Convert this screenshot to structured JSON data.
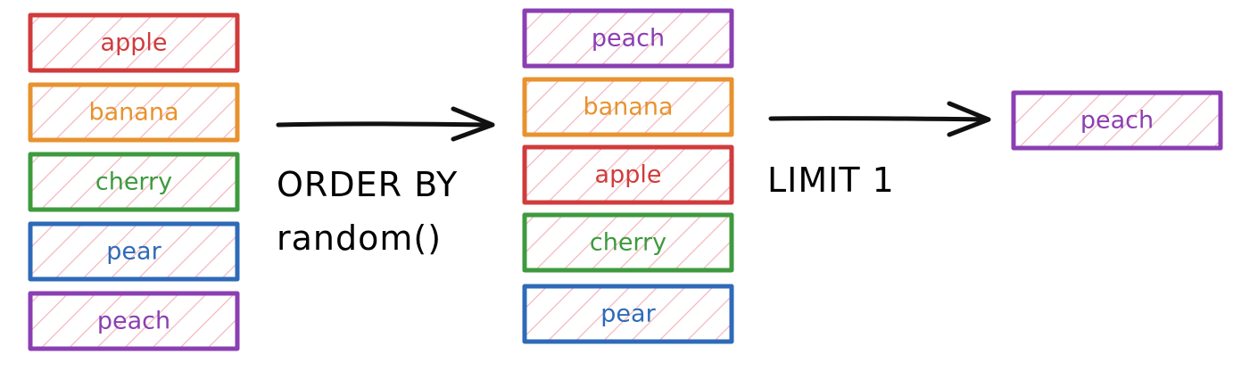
{
  "colors": {
    "apple": "#d13b3b",
    "banana": "#e8922e",
    "cherry": "#3e9a3e",
    "pear": "#2e6ab8",
    "peach": "#8b3fb3",
    "hatch": "#f4b8bd",
    "arrow": "#111111"
  },
  "columns": {
    "input": [
      {
        "label": "apple",
        "color_key": "apple"
      },
      {
        "label": "banana",
        "color_key": "banana"
      },
      {
        "label": "cherry",
        "color_key": "cherry"
      },
      {
        "label": "pear",
        "color_key": "pear"
      },
      {
        "label": "peach",
        "color_key": "peach"
      }
    ],
    "shuffled": [
      {
        "label": "peach",
        "color_key": "peach"
      },
      {
        "label": "banana",
        "color_key": "banana"
      },
      {
        "label": "apple",
        "color_key": "apple"
      },
      {
        "label": "cherry",
        "color_key": "cherry"
      },
      {
        "label": "pear",
        "color_key": "pear"
      }
    ],
    "result": [
      {
        "label": "peach",
        "color_key": "peach"
      }
    ]
  },
  "operations": {
    "order_by": {
      "line1": "ORDER BY",
      "line2": "random()"
    },
    "limit": {
      "line1": "LIMIT 1"
    }
  }
}
